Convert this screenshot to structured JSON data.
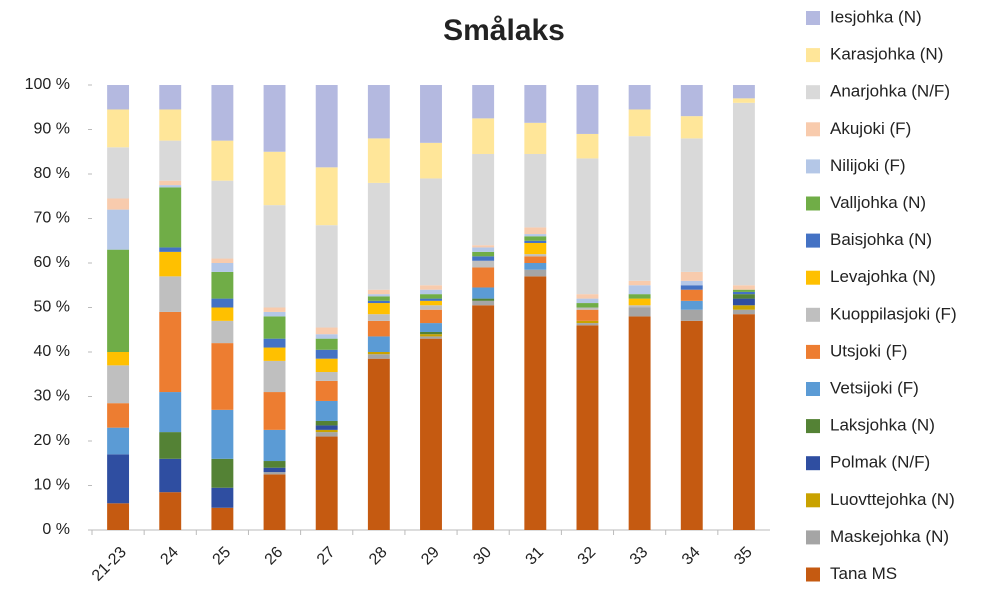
{
  "chart_data": {
    "type": "stacked_bar",
    "title": "Smålaks",
    "categories": [
      "21-23",
      "24",
      "25",
      "26",
      "27",
      "28",
      "29",
      "30",
      "31",
      "32",
      "33",
      "34",
      "35"
    ],
    "series": [
      {
        "name": "Tana MS",
        "color": "#c55a11",
        "values": [
          6,
          8.5,
          5,
          12.5,
          21,
          38.5,
          43,
          50.5,
          57,
          46,
          48,
          47,
          48.5
        ]
      },
      {
        "name": "Maskejohka (N)",
        "color": "#a5a5a5",
        "values": [
          0,
          0,
          0,
          0.5,
          1,
          1,
          0.5,
          1,
          1.5,
          0.5,
          2,
          2.5,
          1
        ]
      },
      {
        "name": "Luovttejohka (N)",
        "color": "#c9a200",
        "values": [
          0,
          0,
          0,
          0,
          0.5,
          0.5,
          0.5,
          0,
          0,
          0.5,
          0,
          0,
          1
        ]
      },
      {
        "name": "Polmak (N/F)",
        "color": "#2f4ea1",
        "values": [
          11,
          7.5,
          4.5,
          1,
          1,
          0,
          0,
          0,
          0,
          0,
          0,
          0,
          1.5
        ]
      },
      {
        "name": "Laksjohka (N)",
        "color": "#548235",
        "values": [
          0,
          6,
          6.5,
          1.5,
          1,
          0,
          0.5,
          0.5,
          0,
          0,
          0,
          0,
          1
        ]
      },
      {
        "name": "Vetsijoki (F)",
        "color": "#5b9bd5",
        "values": [
          6,
          9,
          11,
          7,
          4.5,
          3.5,
          2,
          2.5,
          1.5,
          0,
          0,
          2,
          0
        ]
      },
      {
        "name": "Utsjoki (F)",
        "color": "#ed7d31",
        "values": [
          5.5,
          18,
          15,
          8.5,
          4.5,
          3.5,
          3,
          4.5,
          1.5,
          2.5,
          0,
          2.5,
          0
        ]
      },
      {
        "name": "Kuoppilasjoki (F)",
        "color": "#bfbfbf",
        "values": [
          8.5,
          8,
          5,
          7,
          2,
          1.5,
          1,
          1.5,
          0.5,
          0.5,
          0.5,
          0,
          0
        ]
      },
      {
        "name": "Levajohka (N)",
        "color": "#ffc000",
        "values": [
          3,
          5.5,
          3,
          3,
          3,
          2.5,
          1,
          0,
          2.5,
          0,
          1.5,
          0,
          0
        ]
      },
      {
        "name": "Baisjohka (N)",
        "color": "#4472c4",
        "values": [
          0,
          1,
          2,
          2,
          2,
          0.5,
          0.5,
          1,
          0.5,
          0,
          0,
          1,
          0.5
        ]
      },
      {
        "name": "Valljohka (N)",
        "color": "#70ad47",
        "values": [
          23,
          13.5,
          6,
          5,
          2.5,
          1,
          1,
          1,
          1,
          1,
          1,
          0,
          0.5
        ]
      },
      {
        "name": "Nilijoki (F)",
        "color": "#b4c7e7",
        "values": [
          9,
          0.5,
          2,
          1,
          1,
          0.5,
          1,
          1,
          0.5,
          1,
          2,
          1,
          0
        ]
      },
      {
        "name": "Akujoki (F)",
        "color": "#f8cbad",
        "values": [
          2.5,
          1,
          1,
          1,
          1.5,
          1,
          1,
          0.5,
          1.5,
          1,
          1,
          2,
          1
        ]
      },
      {
        "name": "Anarjohka (N/F)",
        "color": "#d9d9d9",
        "values": [
          11.5,
          9,
          17.5,
          23,
          23,
          24,
          24,
          20.5,
          16.5,
          30.5,
          32.5,
          30,
          41
        ]
      },
      {
        "name": "Karasjohka (N)",
        "color": "#ffe699",
        "values": [
          8.5,
          7,
          9,
          12,
          13,
          10,
          8,
          8,
          7,
          5.5,
          6,
          5,
          1
        ]
      },
      {
        "name": "Iesjohka (N)",
        "color": "#b4b9e0",
        "values": [
          5.5,
          5.5,
          12.5,
          15,
          18.5,
          12,
          13,
          7.5,
          8.5,
          11,
          5.5,
          7,
          3
        ]
      }
    ],
    "ylim": [
      0,
      100
    ],
    "yticks": [
      {
        "value": 0,
        "label": "0 %"
      },
      {
        "value": 10,
        "label": "10 %"
      },
      {
        "value": 20,
        "label": "20 %"
      },
      {
        "value": 30,
        "label": "30 %"
      },
      {
        "value": 40,
        "label": "40 %"
      },
      {
        "value": 50,
        "label": "50 %"
      },
      {
        "value": 60,
        "label": "60 %"
      },
      {
        "value": 70,
        "label": "70 %"
      },
      {
        "value": 80,
        "label": "80 %"
      },
      {
        "value": 90,
        "label": "90 %"
      },
      {
        "value": 100,
        "label": "100 %"
      }
    ],
    "grid": false,
    "legend": "right"
  }
}
